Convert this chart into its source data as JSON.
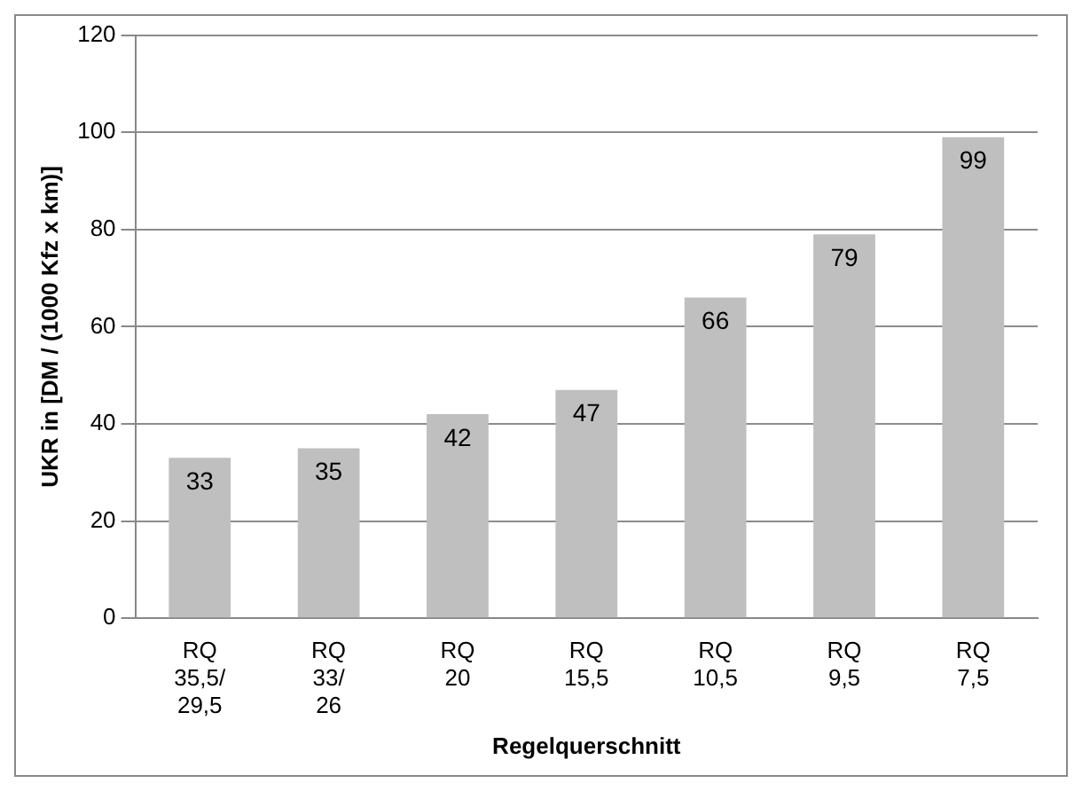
{
  "chart_data": {
    "type": "bar",
    "ylabel": "UKR in [DM / (1000 Kfz x km)]",
    "xlabel": "Regelquerschnitt",
    "categories": [
      "RQ\n35,5/\n29,5",
      "RQ\n33/\n26",
      "RQ\n20",
      "RQ\n15,5",
      "RQ\n10,5",
      "RQ\n9,5",
      "RQ\n7,5"
    ],
    "values": [
      33,
      35,
      42,
      47,
      66,
      79,
      99
    ],
    "color": "#bfbfbf",
    "data_labels": true,
    "ylim": [
      0,
      120
    ],
    "yticks": [
      0,
      20,
      40,
      60,
      80,
      100,
      120
    ],
    "grid": "y",
    "legend": false
  }
}
